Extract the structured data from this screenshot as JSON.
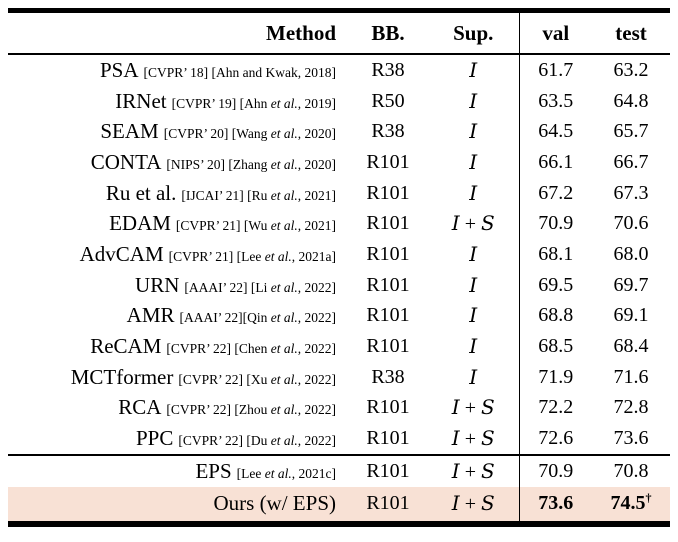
{
  "page": {
    "background": "#ffffff"
  },
  "table": {
    "headers": {
      "method": "Method",
      "bb": "BB.",
      "sup": "Sup.",
      "val": "val",
      "test": "test"
    },
    "highlight_color": "#f8e1d5",
    "rule_color": "#000000",
    "sup_symbols": {
      "image": "I",
      "saliency": "S",
      "plus": "+"
    },
    "rows": [
      {
        "method": "PSA",
        "ref": "[CVPR’ 18] [Ahn and Kwak, 2018]",
        "bb": "R38",
        "sup": "I",
        "val": "61.7",
        "test": "63.2"
      },
      {
        "method": "IRNet",
        "ref": "[CVPR’ 19] [Ahn et al., 2019]",
        "bb": "R50",
        "sup": "I",
        "val": "63.5",
        "test": "64.8"
      },
      {
        "method": "SEAM",
        "ref": "[CVPR’ 20] [Wang et al., 2020]",
        "bb": "R38",
        "sup": "I",
        "val": "64.5",
        "test": "65.7"
      },
      {
        "method": "CONTA",
        "ref": "[NIPS’ 20] [Zhang et al., 2020]",
        "bb": "R101",
        "sup": "I",
        "val": "66.1",
        "test": "66.7"
      },
      {
        "method": "Ru et al.",
        "ref": "[IJCAI’ 21] [Ru et al., 2021]",
        "bb": "R101",
        "sup": "I",
        "val": "67.2",
        "test": "67.3"
      },
      {
        "method": "EDAM",
        "ref": "[CVPR’ 21] [Wu et al., 2021]",
        "bb": "R101",
        "sup": "I+S",
        "val": "70.9",
        "test": "70.6"
      },
      {
        "method": "AdvCAM",
        "ref": "[CVPR’ 21] [Lee et al., 2021a]",
        "bb": "R101",
        "sup": "I",
        "val": "68.1",
        "test": "68.0"
      },
      {
        "method": "URN",
        "ref": "[AAAI’ 22] [Li et al., 2022]",
        "bb": "R101",
        "sup": "I",
        "val": "69.5",
        "test": "69.7"
      },
      {
        "method": "AMR",
        "ref": "[AAAI’ 22][Qin et al., 2022]",
        "bb": "R101",
        "sup": "I",
        "val": "68.8",
        "test": "69.1"
      },
      {
        "method": "ReCAM",
        "ref": "[CVPR’ 22] [Chen et al., 2022]",
        "bb": "R101",
        "sup": "I",
        "val": "68.5",
        "test": "68.4"
      },
      {
        "method": "MCTformer",
        "ref": "[CVPR’ 22] [Xu et al., 2022]",
        "bb": "R38",
        "sup": "I",
        "val": "71.9",
        "test": "71.6"
      },
      {
        "method": "RCA",
        "ref": "[CVPR’ 22] [Zhou et al., 2022]",
        "bb": "R101",
        "sup": "I+S",
        "val": "72.2",
        "test": "72.8"
      },
      {
        "method": "PPC",
        "ref": "[CVPR’ 22] [Du et al., 2022]",
        "bb": "R101",
        "sup": "I+S",
        "val": "72.6",
        "test": "73.6"
      },
      {
        "method": "EPS",
        "ref": "[Lee et al., 2021c]",
        "bb": "R101",
        "sup": "I+S",
        "val": "70.9",
        "test": "70.8",
        "section_start": true
      },
      {
        "method": "Ours (w/ EPS)",
        "ref": "",
        "bb": "R101",
        "sup": "I+S",
        "val": "73.6",
        "test": "74.5",
        "test_superscript": "†",
        "bold_values": true,
        "highlight": true
      }
    ]
  }
}
